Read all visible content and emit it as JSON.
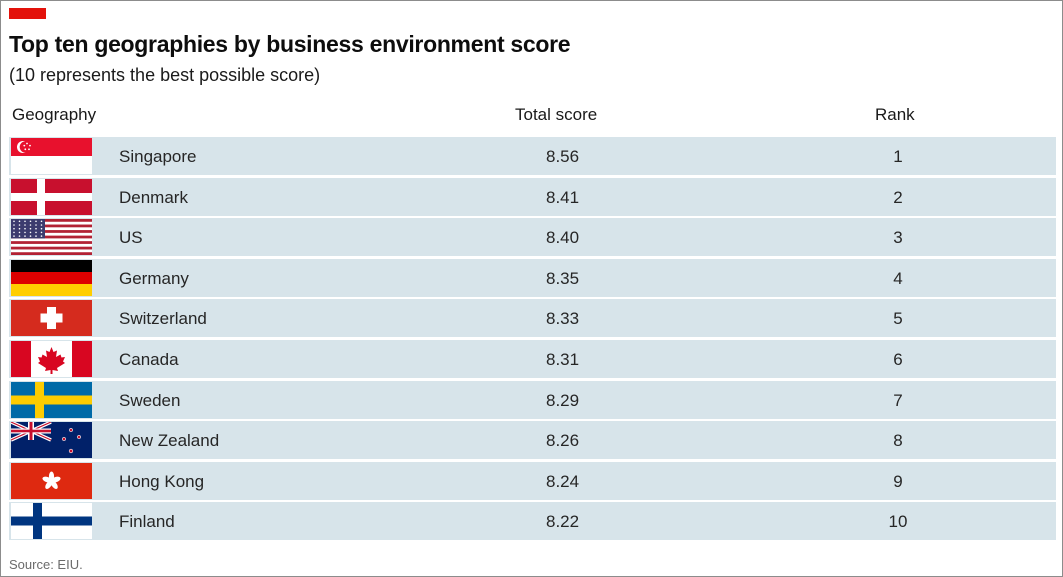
{
  "title": "Top ten geographies by business environment score",
  "subtitle": "(10 represents the best possible score)",
  "source": "Source: EIU.",
  "colors": {
    "accent": "#e3120b",
    "row_bg": "#d7e4ea"
  },
  "chart_data": {
    "type": "table",
    "title": "Top ten geographies by business environment score",
    "subtitle": "(10 represents the best possible score)",
    "columns": [
      "Geography",
      "Total score",
      "Rank"
    ],
    "rows": [
      {
        "geography": "Singapore",
        "score": "8.56",
        "rank": "1",
        "flag": "singapore-flag"
      },
      {
        "geography": "Denmark",
        "score": "8.41",
        "rank": "2",
        "flag": "denmark-flag"
      },
      {
        "geography": "US",
        "score": "8.40",
        "rank": "3",
        "flag": "us-flag"
      },
      {
        "geography": "Germany",
        "score": "8.35",
        "rank": "4",
        "flag": "germany-flag"
      },
      {
        "geography": "Switzerland",
        "score": "8.33",
        "rank": "5",
        "flag": "switzerland-flag"
      },
      {
        "geography": "Canada",
        "score": "8.31",
        "rank": "6",
        "flag": "canada-flag"
      },
      {
        "geography": "Sweden",
        "score": "8.29",
        "rank": "7",
        "flag": "sweden-flag"
      },
      {
        "geography": "New Zealand",
        "score": "8.26",
        "rank": "8",
        "flag": "new-zealand-flag"
      },
      {
        "geography": "Hong Kong",
        "score": "8.24",
        "rank": "9",
        "flag": "hong-kong-flag"
      },
      {
        "geography": "Finland",
        "score": "8.22",
        "rank": "10",
        "flag": "finland-flag"
      }
    ]
  }
}
